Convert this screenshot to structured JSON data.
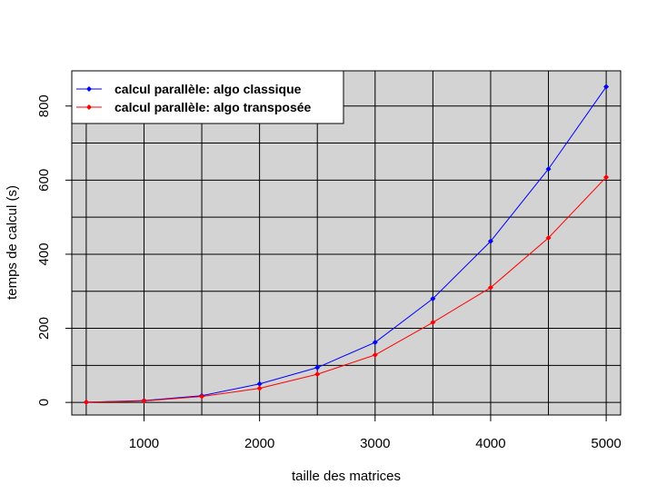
{
  "chart_data": {
    "type": "line",
    "title": "",
    "xlabel": "taille des matrices",
    "ylabel": "temps de calcul (s)",
    "xlim": [
      375,
      5125
    ],
    "ylim": [
      -34,
      895
    ],
    "x_ticks": [
      1000,
      2000,
      3000,
      4000,
      5000
    ],
    "y_ticks": [
      0,
      200,
      400,
      600,
      800
    ],
    "x_tick_labels": [
      "1000",
      "2000",
      "3000",
      "4000",
      "5000"
    ],
    "y_tick_labels": [
      "0",
      "200",
      "400",
      "600",
      "800"
    ],
    "x_grid": [
      500,
      1000,
      1500,
      2000,
      2500,
      3000,
      3500,
      4000,
      4500,
      5000
    ],
    "y_grid": [
      0,
      100,
      200,
      300,
      400,
      500,
      600,
      700,
      800
    ],
    "grid": true,
    "background": "#d3d3d3",
    "legend_position": "top-left",
    "x": [
      500,
      1000,
      1500,
      2000,
      2500,
      3000,
      3500,
      4000,
      4500,
      5000
    ],
    "series": [
      {
        "name": "calcul parallèle: algo classique",
        "color": "#0000ff",
        "values": [
          0.5,
          5,
          18,
          50,
          94,
          162,
          280,
          435,
          630,
          852
        ]
      },
      {
        "name": "calcul parallèle: algo transposée",
        "color": "#ff0000",
        "values": [
          0.5,
          4,
          16,
          38,
          76,
          128,
          216,
          310,
          444,
          608
        ]
      }
    ]
  }
}
